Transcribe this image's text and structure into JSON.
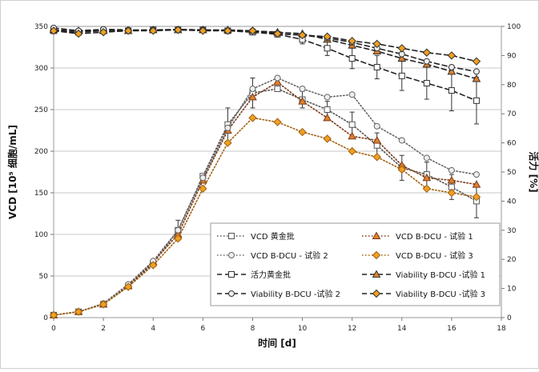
{
  "chart_data": {
    "type": "line",
    "xlabel": "时间 [d]",
    "ylabel_left": "VCD [10⁵ 细胞/mL]",
    "ylabel_right": "活力 [%]",
    "xlim": [
      0,
      18
    ],
    "ylim_left": [
      0,
      350
    ],
    "ylim_right": [
      0,
      100
    ],
    "x_ticks": [
      "0",
      "2",
      "4",
      "6",
      "8",
      "10",
      "12",
      "14",
      "16",
      "18"
    ],
    "y_left_ticks": [
      "0",
      "50",
      "100",
      "150",
      "200",
      "250",
      "300",
      "350"
    ],
    "y_right_ticks": [
      "0",
      "10",
      "20",
      "30",
      "40",
      "50",
      "60",
      "70",
      "80",
      "90",
      "100"
    ],
    "grid": "horizontal",
    "legend_position": "bottom-right",
    "series": [
      {
        "name": "VCD 黄金批",
        "axis": "left",
        "style": "dotted",
        "marker": "square",
        "color": "#555555",
        "fill": "#ffffff",
        "x": [
          0,
          1,
          2,
          3,
          4,
          5,
          6,
          7,
          8,
          9,
          10,
          11,
          12,
          13,
          14,
          15,
          16,
          17
        ],
        "y": [
          3,
          7,
          16,
          38,
          65,
          105,
          170,
          232,
          270,
          275,
          262,
          250,
          232,
          207,
          180,
          172,
          157,
          140
        ],
        "err": [
          0,
          0,
          0,
          0,
          3,
          12,
          0,
          20,
          18,
          0,
          10,
          10,
          15,
          15,
          15,
          15,
          15,
          20
        ]
      },
      {
        "name": "VCD B-DCU - 试验 1",
        "axis": "left",
        "style": "dotted",
        "marker": "triangle",
        "color": "#7a3a1a",
        "fill": "#e2812a",
        "x": [
          0,
          1,
          2,
          3,
          4,
          5,
          6,
          7,
          8,
          9,
          10,
          11,
          12,
          13,
          14,
          15,
          16,
          17
        ],
        "y": [
          3,
          7,
          16,
          38,
          67,
          100,
          165,
          225,
          265,
          283,
          260,
          240,
          218,
          213,
          183,
          168,
          165,
          160
        ]
      },
      {
        "name": "VCD B-DCU - 试验 2",
        "axis": "left",
        "style": "dotted",
        "marker": "circle",
        "color": "#666666",
        "fill": "#eeeeee",
        "x": [
          0,
          1,
          2,
          3,
          4,
          5,
          6,
          7,
          8,
          9,
          10,
          11,
          12,
          13,
          14,
          15,
          16,
          17
        ],
        "y": [
          3,
          7,
          17,
          40,
          68,
          105,
          168,
          228,
          275,
          288,
          275,
          265,
          268,
          230,
          213,
          192,
          177,
          172
        ]
      },
      {
        "name": "VCD B-DCU - 试验 3",
        "axis": "left",
        "style": "dotted",
        "marker": "diamond",
        "color": "#a06010",
        "fill": "#f0a020",
        "x": [
          0,
          1,
          2,
          3,
          4,
          5,
          6,
          7,
          8,
          9,
          10,
          11,
          12,
          13,
          14,
          15,
          16,
          17
        ],
        "y": [
          3,
          7,
          16,
          37,
          63,
          95,
          155,
          210,
          240,
          235,
          223,
          215,
          200,
          193,
          178,
          155,
          150,
          145
        ]
      },
      {
        "name": "活力黄金批",
        "axis": "right",
        "style": "dashed",
        "marker": "square",
        "color": "#222222",
        "fill": "#ffffff",
        "x": [
          0,
          1,
          2,
          3,
          4,
          5,
          6,
          7,
          8,
          9,
          10,
          11,
          12,
          13,
          14,
          15,
          16,
          17
        ],
        "y": [
          98.5,
          98,
          98.5,
          98.5,
          98.8,
          98.8,
          98.8,
          98.5,
          98,
          97.3,
          95.5,
          92.5,
          89,
          86,
          83,
          80.5,
          78,
          74.5
        ],
        "err": [
          0,
          0,
          0,
          0,
          0,
          0,
          0,
          0,
          0,
          0,
          1.5,
          2.5,
          3.5,
          4,
          5,
          5.5,
          7,
          8
        ]
      },
      {
        "name": "Viability B-DCU -试验 1",
        "axis": "right",
        "style": "dashed",
        "marker": "triangle",
        "color": "#222222",
        "fill": "#e2812a",
        "x": [
          0,
          1,
          2,
          3,
          4,
          5,
          6,
          7,
          8,
          9,
          10,
          11,
          12,
          13,
          14,
          15,
          16,
          17
        ],
        "y": [
          98.8,
          98.5,
          98.5,
          98.5,
          98.8,
          98.8,
          98.8,
          98.8,
          98.5,
          98,
          97.5,
          95.5,
          93.5,
          91.5,
          89,
          87,
          84.5,
          82
        ]
      },
      {
        "name": "Viability B-DCU -试验 2",
        "axis": "right",
        "style": "dashed",
        "marker": "circle",
        "color": "#222222",
        "fill": "#eeeeee",
        "x": [
          0,
          1,
          2,
          3,
          4,
          5,
          6,
          7,
          8,
          9,
          10,
          11,
          12,
          13,
          14,
          15,
          16,
          17
        ],
        "y": [
          99.5,
          98.5,
          99,
          98.8,
          98.8,
          99,
          98.8,
          98.5,
          98.5,
          97.5,
          97,
          96,
          94.5,
          92.5,
          90.5,
          88,
          86,
          84.5
        ]
      },
      {
        "name": "Viability B-DCU -试验 3",
        "axis": "right",
        "style": "dashed",
        "marker": "diamond",
        "color": "#222222",
        "fill": "#f0a020",
        "x": [
          0,
          1,
          2,
          3,
          4,
          5,
          6,
          7,
          8,
          9,
          10,
          11,
          12,
          13,
          14,
          15,
          16,
          17
        ],
        "y": [
          98.5,
          97.5,
          98,
          98.5,
          98.5,
          98.8,
          98.5,
          98.5,
          98.5,
          97.5,
          97,
          96.5,
          95,
          94,
          92.5,
          91,
          90,
          88
        ]
      }
    ]
  }
}
